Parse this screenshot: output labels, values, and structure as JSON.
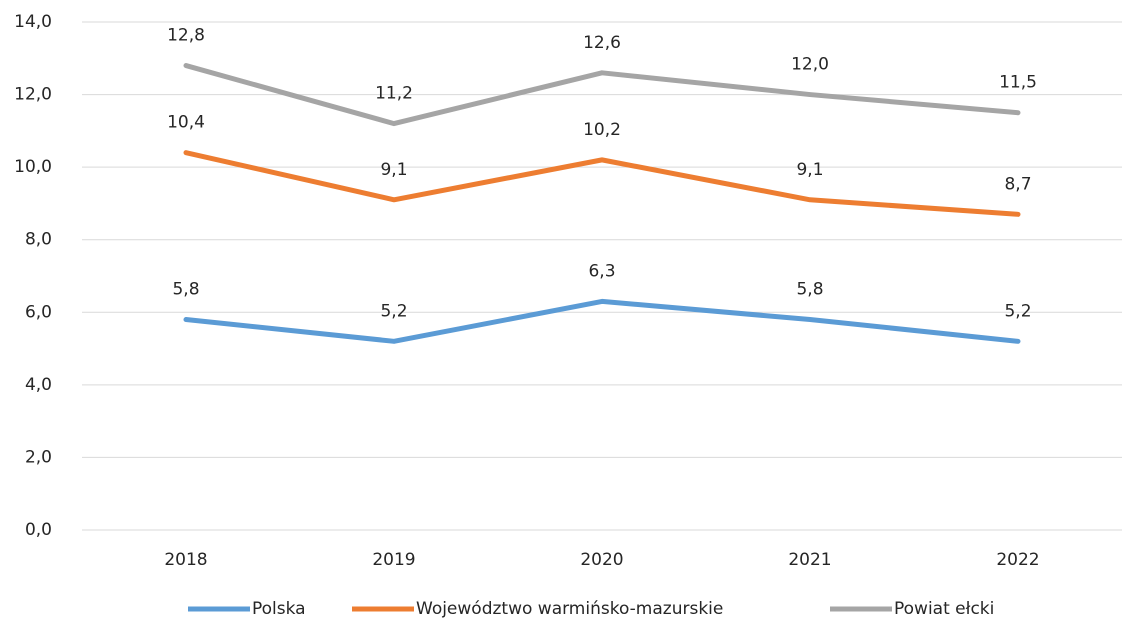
{
  "chart_data": {
    "type": "line",
    "categories": [
      "2018",
      "2019",
      "2020",
      "2021",
      "2022"
    ],
    "series": [
      {
        "name": "Polska",
        "color": "#5b9bd5",
        "values": [
          5.8,
          5.2,
          6.3,
          5.8,
          5.2
        ],
        "value_labels": [
          "5,8",
          "5,2",
          "6,3",
          "5,8",
          "5,2"
        ]
      },
      {
        "name": "Województwo warmińsko-mazurskie",
        "color": "#ed7d31",
        "values": [
          10.4,
          9.1,
          10.2,
          9.1,
          8.7
        ],
        "value_labels": [
          "10,4",
          "9,1",
          "10,2",
          "9,1",
          "8,7"
        ]
      },
      {
        "name": "Powiat ełcki",
        "color": "#a5a5a5",
        "values": [
          12.8,
          11.2,
          12.6,
          12.0,
          11.5
        ],
        "value_labels": [
          "12,8",
          "11,2",
          "12,6",
          "12,0",
          "11,5"
        ]
      }
    ],
    "ylim": [
      0,
      14
    ],
    "yticks": [
      {
        "value": 0,
        "label": "0,0"
      },
      {
        "value": 2,
        "label": "2,0"
      },
      {
        "value": 4,
        "label": "4,0"
      },
      {
        "value": 6,
        "label": "6,0"
      },
      {
        "value": 8,
        "label": "8,0"
      },
      {
        "value": 10,
        "label": "10,0"
      },
      {
        "value": 12,
        "label": "12,0"
      },
      {
        "value": 14,
        "label": "14,0"
      }
    ],
    "grid": true,
    "legend": "bottom"
  }
}
